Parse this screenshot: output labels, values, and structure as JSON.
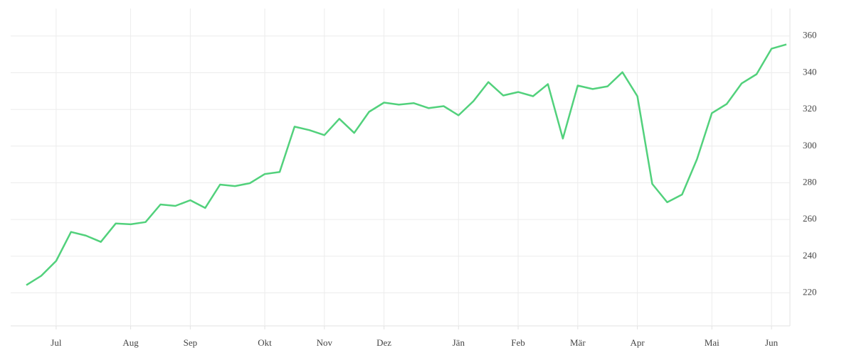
{
  "chart_data": {
    "type": "line",
    "categories": [
      null,
      null,
      "Jul",
      null,
      null,
      null,
      null,
      "Aug",
      null,
      null,
      null,
      "Sep",
      null,
      null,
      null,
      null,
      "Okt",
      null,
      null,
      null,
      "Nov",
      null,
      null,
      null,
      "Dez",
      null,
      null,
      null,
      null,
      "Jän",
      null,
      null,
      null,
      "Feb",
      null,
      null,
      null,
      "Mär",
      null,
      null,
      null,
      "Apr",
      null,
      null,
      null,
      null,
      "Mai",
      null,
      null,
      null,
      "Jun",
      null
    ],
    "values": [
      224.2,
      229.3,
      237.4,
      253.2,
      251.2,
      247.8,
      257.8,
      257.4,
      258.6,
      268.2,
      267.4,
      270.5,
      266.3,
      279.0,
      278.2,
      279.8,
      284.8,
      285.9,
      310.6,
      308.7,
      306.0,
      314.9,
      307.2,
      318.7,
      323.7,
      322.6,
      323.4,
      320.7,
      321.8,
      316.8,
      324.5,
      334.9,
      327.6,
      329.5,
      327.2,
      333.8,
      304.1,
      333.0,
      331.1,
      332.6,
      340.3,
      327.2,
      279.4,
      269.4,
      273.6,
      292.9,
      318.0,
      323.0,
      334.2,
      339.2,
      353.1,
      355.4
    ],
    "color": "#52d17c",
    "ylim": [
      202,
      375
    ],
    "yticks": [
      220,
      240,
      260,
      280,
      300,
      320,
      340,
      360
    ],
    "grid": true,
    "y_axis_side": "right"
  }
}
